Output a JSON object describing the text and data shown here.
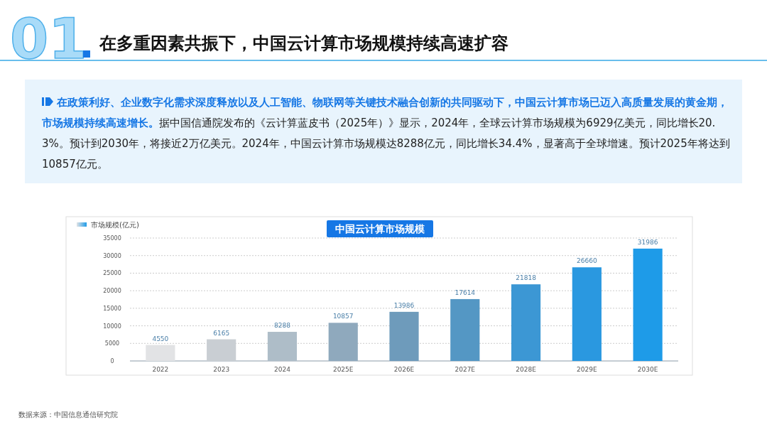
{
  "chart_data": {
    "type": "bar",
    "title": "在多重因素共振下，中国云计算市场规模持续高速扩容",
    "subtitle": "中国云计算市场规模",
    "annotations": [
      "01",
      "在政策利好、企业数字化需求深度释放以及人工智能、物联网等关键技术融合创新的共同驱动下，中国云计算市场已迈入高质量发展的黄金期，市场规模持续高速增长。",
      "据中国信通院发布的《云计算蓝皮书（2025年）》显示，2024年，全球云计算市场规模为6929亿美元，同比增长20.3%。预计到2030年，将接近2万亿美元。2024年，中国云计算市场规模达8288亿元，同比增长34.4%，显著高于全球增速。预计2025年将达到10857亿元。",
      "数据来源：中国信息通信研究院"
    ],
    "categories": [
      "2022",
      "2023",
      "2024",
      "2025E",
      "2026E",
      "2027E",
      "2028E",
      "2029E",
      "2030E"
    ],
    "series": [
      {
        "name": "市场规模(亿元)",
        "values": [
          4550,
          6165,
          8288,
          10857,
          13986,
          17614,
          21818,
          26660,
          31986
        ]
      }
    ],
    "colors": [
      "#e2e3e5",
      "#c9ced3",
      "#aebdc8",
      "#8fa9bd",
      "#6e9bbb",
      "#5497c4",
      "#3c97d4",
      "#2a98e0",
      "#1e9be8"
    ],
    "ylim": [
      0,
      35000
    ],
    "yticks": [
      0,
      5000,
      10000,
      15000,
      20000,
      25000,
      30000,
      35000
    ],
    "grid": "y",
    "legend": "top left",
    "data_labels": true
  }
}
